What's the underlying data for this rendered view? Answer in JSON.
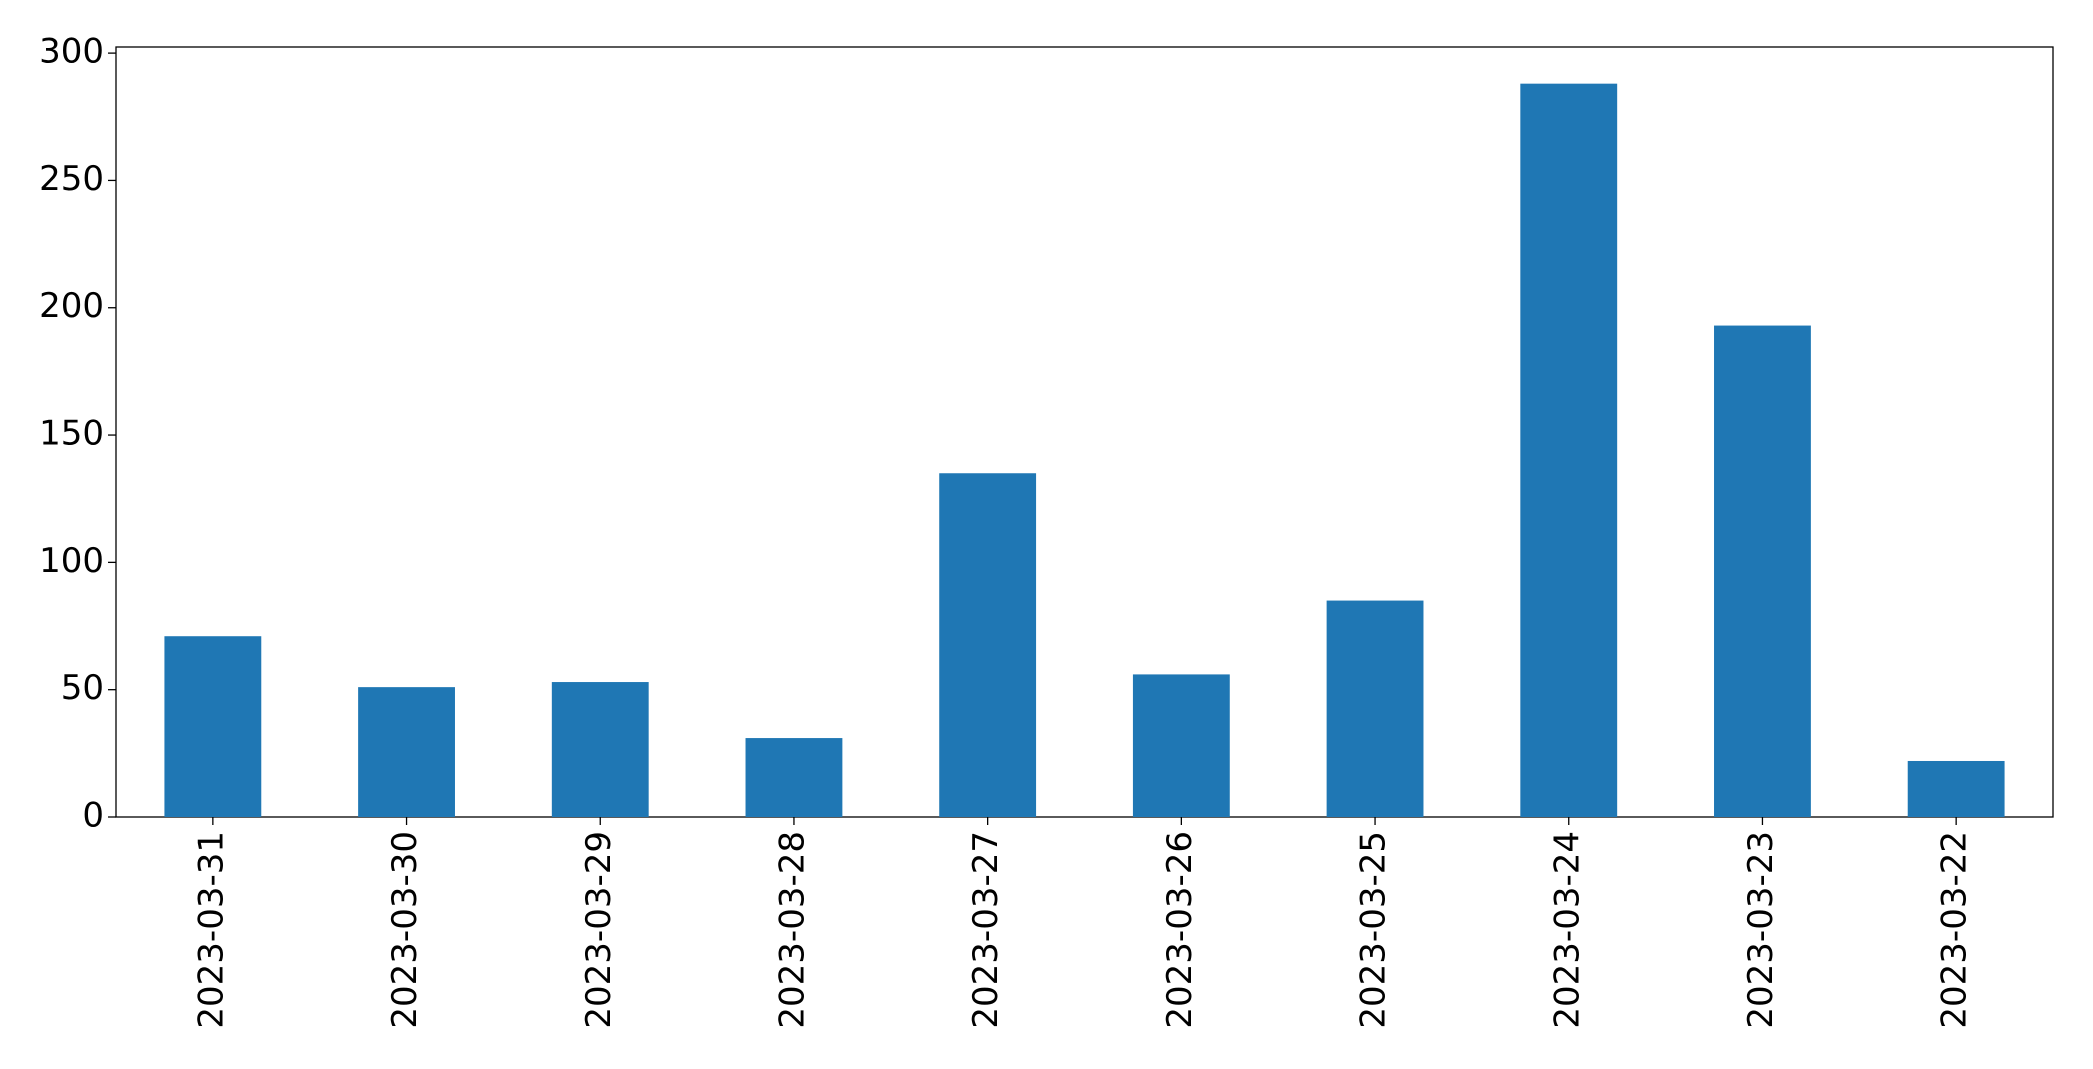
{
  "chart_data": {
    "type": "bar",
    "categories": [
      "2023-03-31",
      "2023-03-30",
      "2023-03-29",
      "2023-03-28",
      "2023-03-27",
      "2023-03-26",
      "2023-03-25",
      "2023-03-24",
      "2023-03-23",
      "2023-03-22"
    ],
    "values": [
      71,
      51,
      53,
      31,
      135,
      56,
      85,
      288,
      193,
      22
    ],
    "color": "#1f77b4",
    "ylim": [
      0,
      302.4
    ],
    "yticks": [
      0,
      50,
      100,
      150,
      200,
      250,
      300
    ],
    "grid": false
  }
}
